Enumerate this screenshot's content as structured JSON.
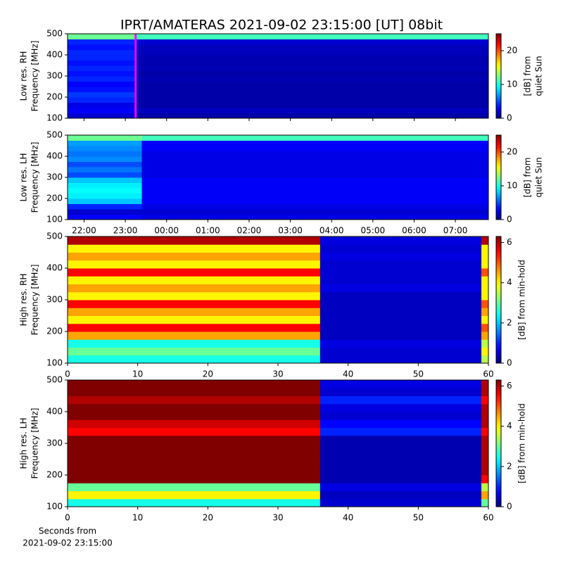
{
  "title": "IPRT/AMATERAS 2021-09-02 23:15:00 [UT]   08bit",
  "chart_data": [
    {
      "type": "heatmap",
      "ylabel": [
        "Low res. RH",
        "Frequency [MHz]"
      ],
      "xlim": [
        21.6,
        31.8
      ],
      "xticks": [
        22,
        23,
        24,
        25,
        26,
        27,
        28,
        29,
        30,
        31
      ],
      "ylim": [
        100,
        500
      ],
      "yticks": [
        100,
        200,
        300,
        400,
        500
      ],
      "x_edges": [
        21.6,
        23.25,
        31.8
      ],
      "y_edges": [
        100,
        125,
        150,
        175,
        200,
        225,
        250,
        275,
        300,
        325,
        350,
        375,
        400,
        425,
        450,
        475,
        500
      ],
      "z": [
        [
          2,
          1
        ],
        [
          3,
          1.5
        ],
        [
          2.5,
          1
        ],
        [
          4,
          1
        ],
        [
          4.5,
          1
        ],
        [
          3.5,
          1
        ],
        [
          3,
          1
        ],
        [
          4,
          1.2
        ],
        [
          3.5,
          1
        ],
        [
          4,
          1.3
        ],
        [
          3.5,
          1.2
        ],
        [
          4,
          1.2
        ],
        [
          4,
          1.5
        ],
        [
          3.5,
          1.5
        ],
        [
          4,
          2
        ],
        [
          12,
          11
        ]
      ],
      "zlim": [
        0,
        25
      ],
      "cticks": [
        0,
        10,
        20
      ],
      "colorbar_label": [
        "[dB] from",
        "quiet Sun"
      ],
      "marker_x": 23.25,
      "marker_color": "#ff00ff"
    },
    {
      "type": "heatmap",
      "ylabel": [
        "Low res. LH",
        "Frequency [MHz]"
      ],
      "xlim": [
        21.6,
        31.8
      ],
      "xticks": [
        {
          "value": 22,
          "label": "22:00"
        },
        {
          "value": 23,
          "label": "23:00"
        },
        {
          "value": 24,
          "label": "00:00"
        },
        {
          "value": 25,
          "label": "01:00"
        },
        {
          "value": 26,
          "label": "02:00"
        },
        {
          "value": 27,
          "label": "03:00"
        },
        {
          "value": 28,
          "label": "04:00"
        },
        {
          "value": 29,
          "label": "05:00"
        },
        {
          "value": 30,
          "label": "06:00"
        },
        {
          "value": 31,
          "label": "07:00"
        }
      ],
      "ylim": [
        100,
        500
      ],
      "yticks": [
        100,
        200,
        300,
        400,
        500
      ],
      "x_edges": [
        21.6,
        23.4,
        31.8
      ],
      "y_edges": [
        100,
        125,
        150,
        175,
        200,
        225,
        250,
        275,
        300,
        325,
        350,
        375,
        400,
        425,
        450,
        475,
        500
      ],
      "z": [
        [
          3,
          2.5
        ],
        [
          2,
          2
        ],
        [
          4,
          2.5
        ],
        [
          8,
          3
        ],
        [
          9,
          3
        ],
        [
          9.5,
          3
        ],
        [
          9,
          3
        ],
        [
          8,
          3
        ],
        [
          5,
          2.5
        ],
        [
          6,
          2.5
        ],
        [
          5,
          2.5
        ],
        [
          6.5,
          2.5
        ],
        [
          6,
          2.5
        ],
        [
          6.5,
          3
        ],
        [
          7,
          3
        ],
        [
          12,
          11
        ]
      ],
      "zlim": [
        0,
        25
      ],
      "cticks": [
        0,
        10,
        20
      ],
      "colorbar_label": [
        "[dB] from",
        "quiet Sun"
      ]
    },
    {
      "type": "heatmap",
      "ylabel": [
        "High res. RH",
        "Frequency [MHz]"
      ],
      "xlim": [
        0,
        60
      ],
      "xticks": [
        0,
        10,
        20,
        30,
        40,
        50,
        60
      ],
      "ylim": [
        100,
        500
      ],
      "yticks": [
        100,
        200,
        300,
        400,
        500
      ],
      "x_edges": [
        0,
        36,
        59,
        60
      ],
      "y_edges": [
        100,
        125,
        150,
        175,
        200,
        225,
        250,
        275,
        300,
        325,
        350,
        375,
        400,
        425,
        450,
        475,
        500
      ],
      "z": [
        [
          2.5,
          0.5,
          3.5
        ],
        [
          3,
          0.5,
          4
        ],
        [
          2.5,
          0.6,
          3.5
        ],
        [
          4.5,
          0.4,
          4.5
        ],
        [
          5.5,
          0.4,
          5
        ],
        [
          4,
          0.4,
          4
        ],
        [
          4.5,
          0.4,
          4.5
        ],
        [
          5.5,
          0.4,
          5
        ],
        [
          4,
          0.4,
          4
        ],
        [
          4.5,
          0.6,
          4
        ],
        [
          4,
          0.5,
          4
        ],
        [
          5.5,
          0.5,
          5
        ],
        [
          4,
          0.5,
          4
        ],
        [
          4.5,
          0.6,
          4
        ],
        [
          4,
          0.5,
          4
        ],
        [
          6,
          0.6,
          6
        ]
      ],
      "zlim": [
        0,
        6.3
      ],
      "cticks": [
        0,
        2,
        4,
        6
      ],
      "colorbar_label": [
        "[dB] from min-hold"
      ]
    },
    {
      "type": "heatmap",
      "ylabel": [
        "High res. LH",
        "Frequency [MHz]"
      ],
      "xlabel": [
        "Seconds from",
        "2021-09-02 23:15:00"
      ],
      "xlim": [
        0,
        60
      ],
      "xticks": [
        0,
        10,
        20,
        30,
        40,
        50,
        60
      ],
      "ylim": [
        100,
        500
      ],
      "yticks": [
        100,
        200,
        300,
        400,
        500
      ],
      "x_edges": [
        0,
        36,
        59,
        60
      ],
      "y_edges": [
        100,
        125,
        150,
        175,
        200,
        225,
        250,
        275,
        300,
        325,
        350,
        375,
        400,
        425,
        450,
        475,
        500
      ],
      "z": [
        [
          2.5,
          0.5,
          3
        ],
        [
          4,
          0.4,
          4.5
        ],
        [
          3,
          0.6,
          3.5
        ],
        [
          6.3,
          0.3,
          5.5
        ],
        [
          6.3,
          0.3,
          6
        ],
        [
          6.3,
          0.3,
          6
        ],
        [
          6.3,
          0.3,
          6
        ],
        [
          6.3,
          0.3,
          6
        ],
        [
          6.3,
          0.3,
          6
        ],
        [
          5.5,
          1,
          5.5
        ],
        [
          5.8,
          0.8,
          6
        ],
        [
          6.3,
          0.5,
          6
        ],
        [
          6.3,
          0.6,
          6
        ],
        [
          6,
          1,
          5.5
        ],
        [
          6.3,
          0.5,
          6
        ],
        [
          6.3,
          0.6,
          6
        ]
      ],
      "zlim": [
        0,
        6.3
      ],
      "cticks": [
        0,
        2,
        4,
        6
      ],
      "colorbar_label": [
        "[dB] from min-hold"
      ]
    }
  ]
}
